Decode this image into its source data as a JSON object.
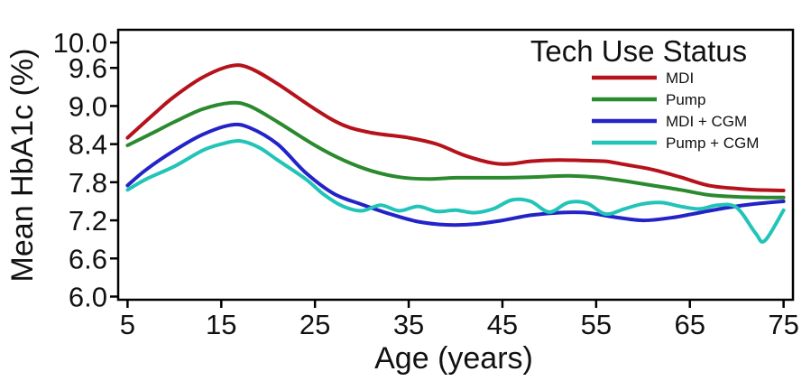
{
  "chart_data": {
    "type": "line",
    "xlabel": "Age (years)",
    "ylabel": "Mean HbA1c (%)",
    "xlim": [
      4,
      76
    ],
    "ylim": [
      5.95,
      10.2
    ],
    "x_ticks": [
      "5",
      "15",
      "25",
      "35",
      "45",
      "55",
      "65",
      "75"
    ],
    "y_ticks": [
      "6.0",
      "6.6",
      "7.2",
      "7.8",
      "8.4",
      "9.0",
      "9.6",
      "10.0"
    ],
    "legend_title": "Tech Use Status",
    "legend_position": "top-right",
    "grid": false,
    "series": [
      {
        "name": "MDI",
        "color": "#b5121b",
        "x": [
          5,
          8,
          10,
          13,
          16,
          18,
          21,
          25,
          28,
          31,
          35,
          38,
          41,
          44,
          46,
          48,
          51,
          54,
          56,
          58,
          61,
          64,
          67,
          70,
          72,
          75
        ],
        "y": [
          8.5,
          8.9,
          9.15,
          9.45,
          9.63,
          9.6,
          9.35,
          8.95,
          8.7,
          8.58,
          8.5,
          8.4,
          8.22,
          8.1,
          8.09,
          8.13,
          8.15,
          8.14,
          8.13,
          8.08,
          8.0,
          7.88,
          7.75,
          7.7,
          7.68,
          7.67
        ]
      },
      {
        "name": "Pump",
        "color": "#2b8a2e",
        "x": [
          5,
          8,
          10,
          13,
          16,
          18,
          21,
          25,
          28,
          31,
          34,
          37,
          40,
          44,
          48,
          52,
          55,
          58,
          61,
          64,
          67,
          70,
          73,
          75
        ],
        "y": [
          8.38,
          8.6,
          8.75,
          8.95,
          9.05,
          9.0,
          8.75,
          8.38,
          8.15,
          7.98,
          7.88,
          7.85,
          7.87,
          7.87,
          7.88,
          7.9,
          7.88,
          7.82,
          7.75,
          7.68,
          7.6,
          7.57,
          7.56,
          7.56
        ]
      },
      {
        "name": "MDI + CGM",
        "color": "#2323c8",
        "x": [
          5,
          7,
          10,
          13,
          16,
          18,
          21,
          24,
          27,
          30,
          33,
          36,
          39,
          42,
          45,
          48,
          51,
          54,
          57,
          60,
          63,
          66,
          69,
          72,
          75
        ],
        "y": [
          7.75,
          8.0,
          8.3,
          8.55,
          8.7,
          8.66,
          8.4,
          7.95,
          7.62,
          7.45,
          7.3,
          7.18,
          7.13,
          7.14,
          7.2,
          7.28,
          7.32,
          7.32,
          7.25,
          7.2,
          7.24,
          7.32,
          7.4,
          7.46,
          7.5
        ]
      },
      {
        "name": "Pump + CGM",
        "color": "#23c4b8",
        "x": [
          5,
          7,
          10,
          13,
          15,
          17,
          19,
          21,
          24,
          26,
          28,
          30,
          32,
          34,
          36,
          38,
          40,
          42,
          44,
          46,
          48,
          50,
          52,
          54,
          56,
          58,
          60,
          62,
          64,
          66,
          68,
          70,
          72,
          73,
          75
        ],
        "y": [
          7.68,
          7.85,
          8.05,
          8.3,
          8.4,
          8.45,
          8.35,
          8.15,
          7.85,
          7.6,
          7.42,
          7.35,
          7.44,
          7.35,
          7.42,
          7.34,
          7.36,
          7.32,
          7.38,
          7.52,
          7.5,
          7.33,
          7.48,
          7.47,
          7.3,
          7.38,
          7.46,
          7.48,
          7.42,
          7.38,
          7.44,
          7.4,
          7.0,
          6.88,
          7.36
        ]
      }
    ]
  }
}
